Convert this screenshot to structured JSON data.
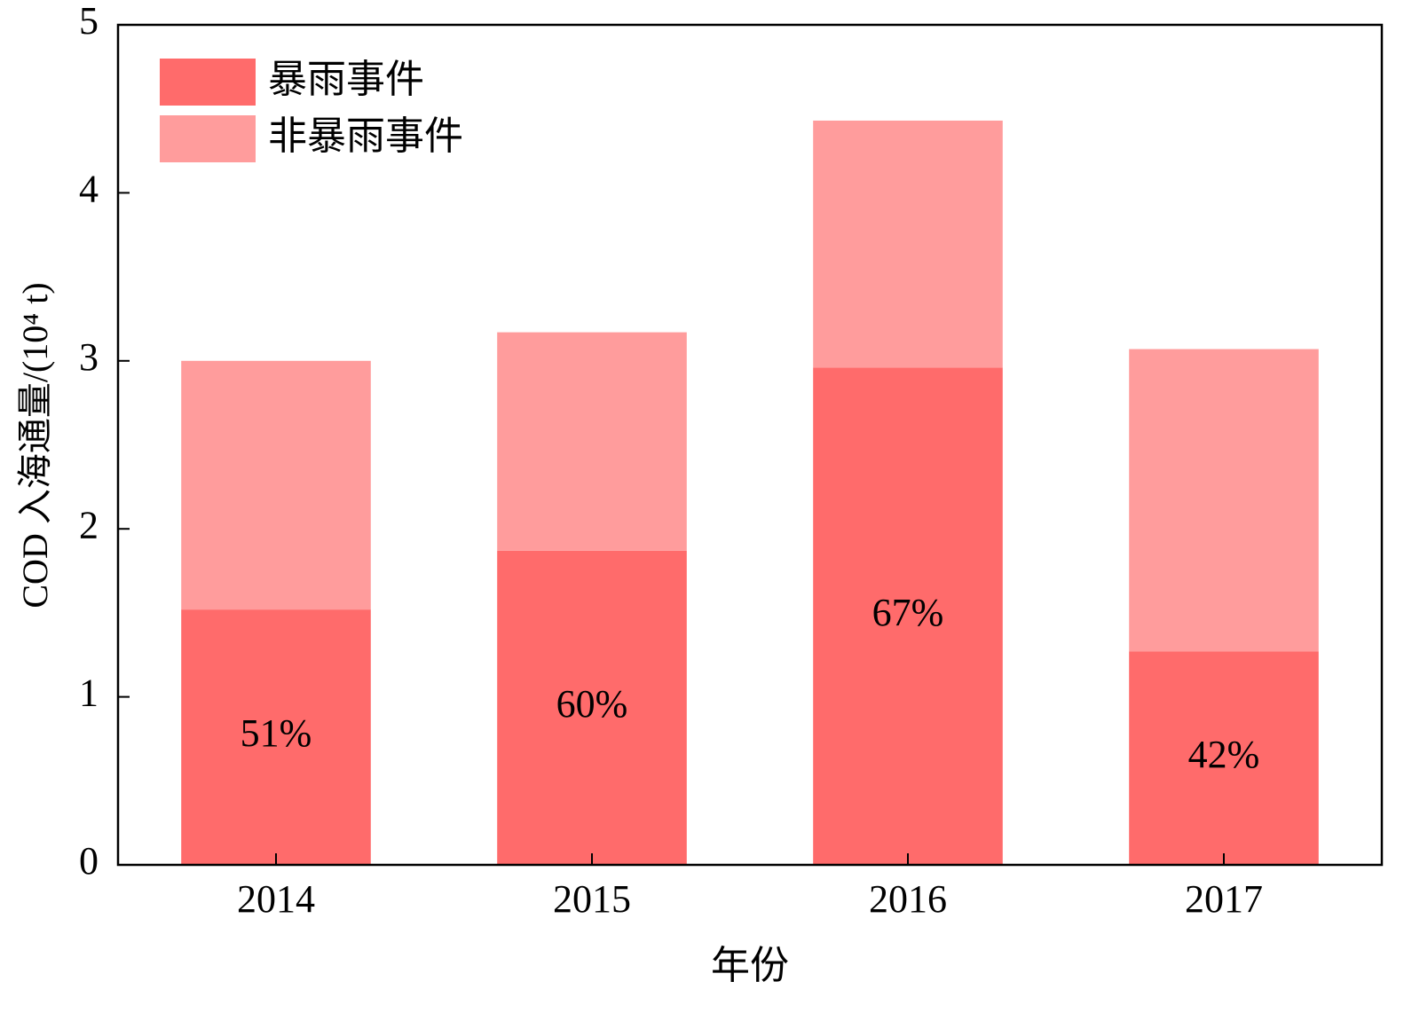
{
  "chart_data": {
    "type": "stacked_bar",
    "xlabel": "年份",
    "ylabel": "COD 入海通量/(10⁴ t)",
    "categories": [
      "2014",
      "2015",
      "2016",
      "2017"
    ],
    "series": [
      {
        "name": "暴雨事件",
        "color": "#ff6b6b",
        "values": [
          1.52,
          1.87,
          2.96,
          1.27
        ]
      },
      {
        "name": "非暴雨事件",
        "color": "#ff9c9c",
        "values": [
          1.48,
          1.3,
          1.47,
          1.8
        ]
      }
    ],
    "annotations": [
      "51%",
      "60%",
      "67%",
      "42%"
    ],
    "ylim": [
      0,
      5
    ],
    "yticks": [
      0,
      1,
      2,
      3,
      4,
      5
    ],
    "legend": "upper left",
    "grid": false
  }
}
